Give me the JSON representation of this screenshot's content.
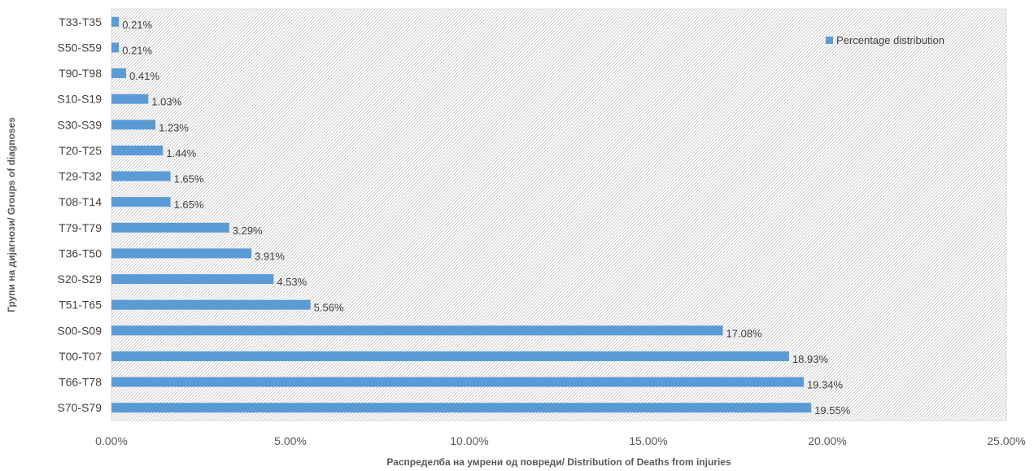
{
  "chart_data": {
    "type": "bar",
    "orientation": "horizontal",
    "categories": [
      "S70-S79",
      "T66-T78",
      "T00-T07",
      "S00-S09",
      "T51-T65",
      "S20-S29",
      "T36-T50",
      "T79-T79",
      "T08-T14",
      "T29-T32",
      "T20-T25",
      "S30-S39",
      "S10-S19",
      "T90-T98",
      "S50-S59",
      "T33-T35"
    ],
    "series": [
      {
        "name": "Percentage distribution",
        "values": [
          19.55,
          19.34,
          18.93,
          17.08,
          5.56,
          4.53,
          3.91,
          3.29,
          1.65,
          1.65,
          1.44,
          1.23,
          1.03,
          0.41,
          0.21,
          0.21
        ],
        "labels": [
          "19.55%",
          "19.34%",
          "18.93%",
          "17.08%",
          "5.56%",
          "4.53%",
          "3.91%",
          "3.29%",
          "1.65%",
          "1.65%",
          "1.44%",
          "1.23%",
          "1.03%",
          "0.41%",
          "0.21%",
          "0.21%"
        ],
        "color": "#5B9BD5"
      }
    ],
    "xlabel": "Распределба на умрени од повреди/ Distribution of Deaths from injuries",
    "ylabel": "Групи на дијагнози/ Groups of diagnoses",
    "xlim": [
      0,
      25
    ],
    "xticks": [
      0,
      5,
      10,
      15,
      20,
      25
    ],
    "xtick_labels": [
      "0.00%",
      "5.00%",
      "10.00%",
      "15.00%",
      "20.00%",
      "25.00%"
    ],
    "legend_position": "top-right",
    "plot_background": "diagonal-hatch",
    "grid": false
  }
}
